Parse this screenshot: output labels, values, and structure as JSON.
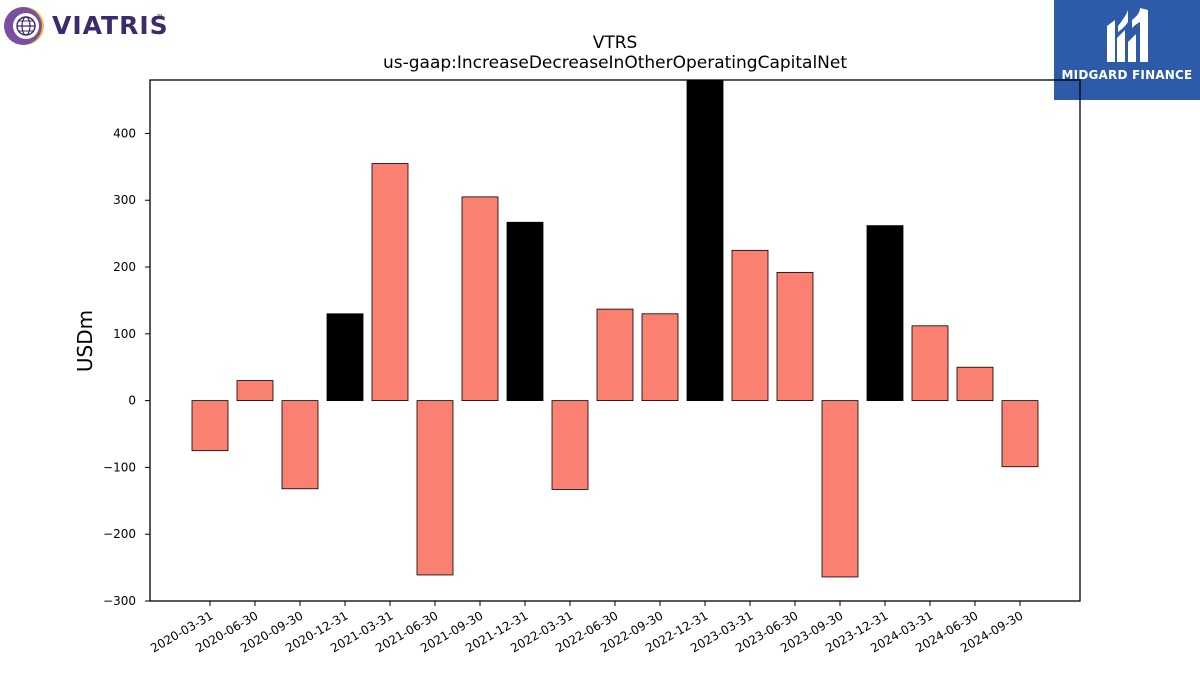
{
  "logos": {
    "left_text": "VIATRIS",
    "left_tm": "™",
    "right_text": "MIDGARD FINANCE"
  },
  "chart_data": {
    "type": "bar",
    "title": "VTRS",
    "subtitle": "us-gaap:IncreaseDecreaseInOtherOperatingCapitalNet",
    "ylabel": "USDm",
    "xlabel": "",
    "ylim": [
      -300,
      480
    ],
    "yticks": [
      -300,
      -200,
      -100,
      0,
      100,
      200,
      300,
      400
    ],
    "ytick_labels": [
      "−300",
      "−200",
      "−100",
      "0",
      "100",
      "200",
      "300",
      "400"
    ],
    "grid": false,
    "categories": [
      "2020-03-31",
      "2020-06-30",
      "2020-09-30",
      "2020-12-31",
      "2021-03-31",
      "2021-06-30",
      "2021-09-30",
      "2021-12-31",
      "2022-03-31",
      "2022-06-30",
      "2022-09-30",
      "2022-12-31",
      "2023-03-31",
      "2023-06-30",
      "2023-09-30",
      "2023-12-31",
      "2024-03-31",
      "2024-06-30",
      "2024-09-30"
    ],
    "values": [
      -75,
      30,
      -132,
      130,
      355,
      -261,
      305,
      267,
      -133,
      137,
      130,
      480,
      225,
      192,
      -264,
      262,
      112,
      50,
      -99
    ],
    "colors": [
      "#fa8072",
      "#fa8072",
      "#fa8072",
      "#000000",
      "#fa8072",
      "#fa8072",
      "#fa8072",
      "#000000",
      "#fa8072",
      "#fa8072",
      "#fa8072",
      "#000000",
      "#fa8072",
      "#fa8072",
      "#fa8072",
      "#000000",
      "#fa8072",
      "#fa8072",
      "#fa8072"
    ]
  }
}
